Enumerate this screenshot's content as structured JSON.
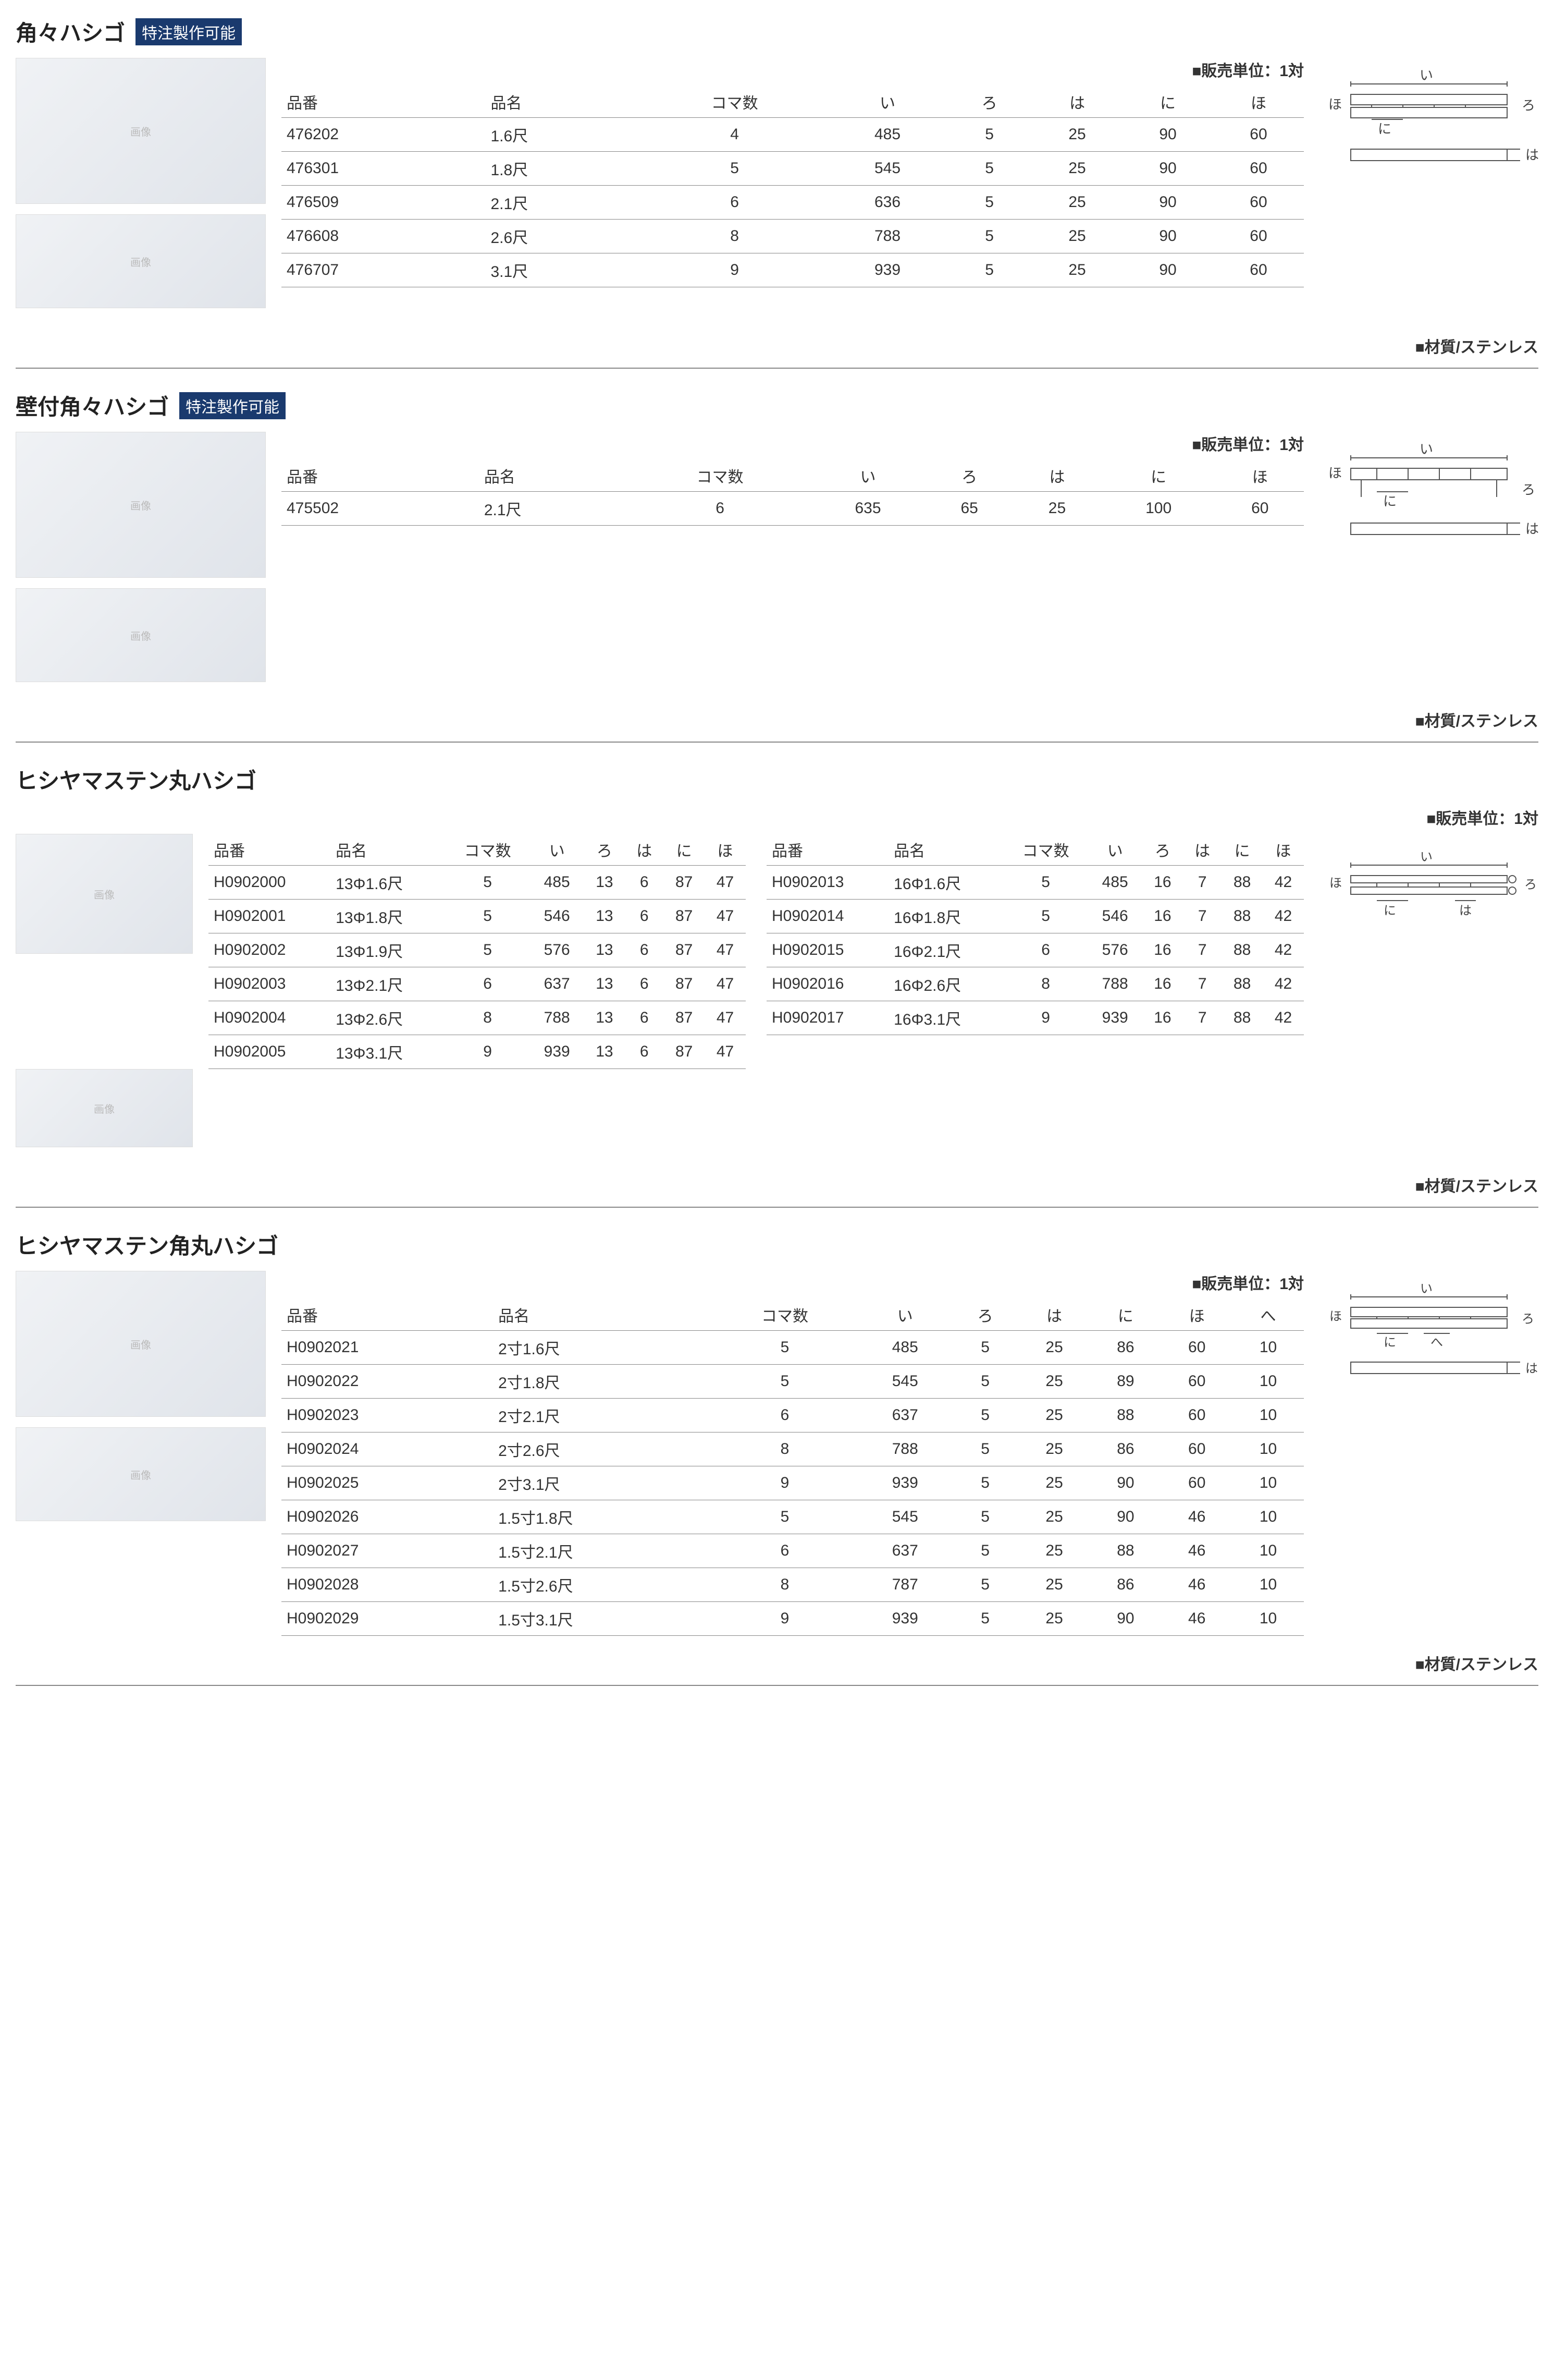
{
  "badge_text": "特注製作可能",
  "unit_label": "■販売単位：1対",
  "material_label": "■材質/ステンレス",
  "diagram_labels": {
    "i": "い",
    "ro": "ろ",
    "ha": "は",
    "ni": "に",
    "ho": "ほ",
    "he": "へ"
  },
  "colors": {
    "badge_bg": "#1a3a6e",
    "badge_fg": "#ffffff",
    "line": "#888888",
    "text": "#333333"
  },
  "sections": [
    {
      "title": "角々ハシゴ",
      "has_badge": true,
      "columns": [
        "品番",
        "品名",
        "コマ数",
        "い",
        "ろ",
        "は",
        "に",
        "ほ"
      ],
      "rows": [
        [
          "476202",
          "1.6尺",
          "4",
          "485",
          "5",
          "25",
          "90",
          "60"
        ],
        [
          "476301",
          "1.8尺",
          "5",
          "545",
          "5",
          "25",
          "90",
          "60"
        ],
        [
          "476509",
          "2.1尺",
          "6",
          "636",
          "5",
          "25",
          "90",
          "60"
        ],
        [
          "476608",
          "2.6尺",
          "8",
          "788",
          "5",
          "25",
          "90",
          "60"
        ],
        [
          "476707",
          "3.1尺",
          "9",
          "939",
          "5",
          "25",
          "90",
          "60"
        ]
      ],
      "diagram_type": "A"
    },
    {
      "title": "壁付角々ハシゴ",
      "has_badge": true,
      "columns": [
        "品番",
        "品名",
        "コマ数",
        "い",
        "ろ",
        "は",
        "に",
        "ほ"
      ],
      "rows": [
        [
          "475502",
          "2.1尺",
          "6",
          "635",
          "65",
          "25",
          "100",
          "60"
        ]
      ],
      "diagram_type": "B"
    },
    {
      "title": "ヒシヤマステン丸ハシゴ",
      "has_badge": false,
      "columns": [
        "品番",
        "品名",
        "コマ数",
        "い",
        "ろ",
        "は",
        "に",
        "ほ"
      ],
      "rows_left": [
        [
          "H0902000",
          "13Φ1.6尺",
          "5",
          "485",
          "13",
          "6",
          "87",
          "47"
        ],
        [
          "H0902001",
          "13Φ1.8尺",
          "5",
          "546",
          "13",
          "6",
          "87",
          "47"
        ],
        [
          "H0902002",
          "13Φ1.9尺",
          "5",
          "576",
          "13",
          "6",
          "87",
          "47"
        ],
        [
          "H0902003",
          "13Φ2.1尺",
          "6",
          "637",
          "13",
          "6",
          "87",
          "47"
        ],
        [
          "H0902004",
          "13Φ2.6尺",
          "8",
          "788",
          "13",
          "6",
          "87",
          "47"
        ],
        [
          "H0902005",
          "13Φ3.1尺",
          "9",
          "939",
          "13",
          "6",
          "87",
          "47"
        ]
      ],
      "rows_right": [
        [
          "H0902013",
          "16Φ1.6尺",
          "5",
          "485",
          "16",
          "7",
          "88",
          "42"
        ],
        [
          "H0902014",
          "16Φ1.8尺",
          "5",
          "546",
          "16",
          "7",
          "88",
          "42"
        ],
        [
          "H0902015",
          "16Φ2.1尺",
          "6",
          "576",
          "16",
          "7",
          "88",
          "42"
        ],
        [
          "H0902016",
          "16Φ2.6尺",
          "8",
          "788",
          "16",
          "7",
          "88",
          "42"
        ],
        [
          "H0902017",
          "16Φ3.1尺",
          "9",
          "939",
          "16",
          "7",
          "88",
          "42"
        ]
      ],
      "diagram_type": "C"
    },
    {
      "title": "ヒシヤマステン角丸ハシゴ",
      "has_badge": false,
      "columns": [
        "品番",
        "品名",
        "コマ数",
        "い",
        "ろ",
        "は",
        "に",
        "ほ",
        "へ"
      ],
      "rows": [
        [
          "H0902021",
          "2寸1.6尺",
          "5",
          "485",
          "5",
          "25",
          "86",
          "60",
          "10"
        ],
        [
          "H0902022",
          "2寸1.8尺",
          "5",
          "545",
          "5",
          "25",
          "89",
          "60",
          "10"
        ],
        [
          "H0902023",
          "2寸2.1尺",
          "6",
          "637",
          "5",
          "25",
          "88",
          "60",
          "10"
        ],
        [
          "H0902024",
          "2寸2.6尺",
          "8",
          "788",
          "5",
          "25",
          "86",
          "60",
          "10"
        ],
        [
          "H0902025",
          "2寸3.1尺",
          "9",
          "939",
          "5",
          "25",
          "90",
          "60",
          "10"
        ],
        [
          "H0902026",
          "1.5寸1.8尺",
          "5",
          "545",
          "5",
          "25",
          "90",
          "46",
          "10"
        ],
        [
          "H0902027",
          "1.5寸2.1尺",
          "6",
          "637",
          "5",
          "25",
          "88",
          "46",
          "10"
        ],
        [
          "H0902028",
          "1.5寸2.6尺",
          "8",
          "787",
          "5",
          "25",
          "86",
          "46",
          "10"
        ],
        [
          "H0902029",
          "1.5寸3.1尺",
          "9",
          "939",
          "5",
          "25",
          "90",
          "46",
          "10"
        ]
      ],
      "diagram_type": "D"
    }
  ]
}
